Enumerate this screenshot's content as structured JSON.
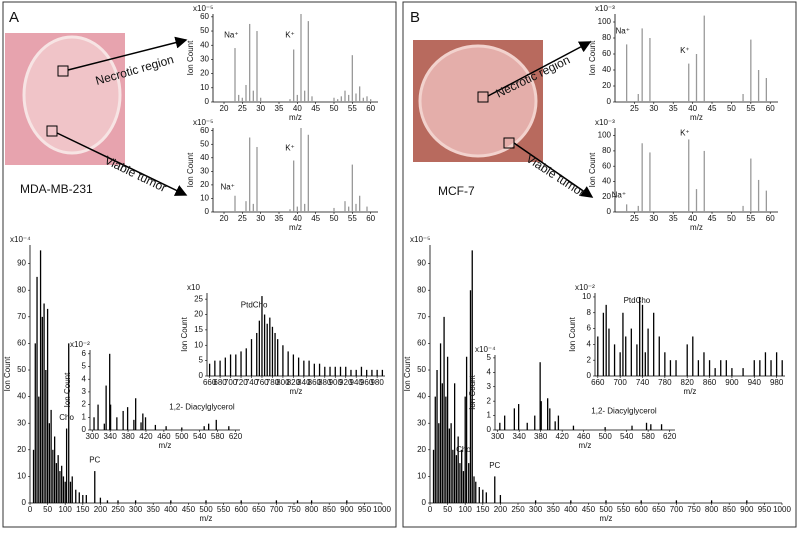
{
  "panels": [
    {
      "label": "A",
      "cell_line": "MDA-MB-231",
      "regions": [
        "Necrotic region",
        "Viable tumor"
      ]
    },
    {
      "label": "B",
      "cell_line": "MCF-7",
      "regions": [
        "Necrotic region",
        "Viable tumor"
      ]
    }
  ],
  "chart_data": [
    {
      "type": "bar",
      "exponent_label": "x10⁻⁵",
      "ylabel": "Ion Count",
      "xlabel": "m/z",
      "color": "#999999",
      "x": [
        23,
        24,
        25,
        26,
        27,
        28,
        29,
        30,
        38,
        39,
        40,
        41,
        42,
        43,
        44,
        50,
        51,
        52,
        53,
        54,
        55,
        56,
        57,
        58,
        59,
        60
      ],
      "values": [
        38,
        5,
        3,
        12,
        55,
        8,
        50,
        3,
        2,
        37,
        5,
        62,
        8,
        57,
        4,
        3,
        2,
        4,
        8,
        5,
        33,
        6,
        11,
        3,
        4,
        2
      ],
      "xlim": [
        17,
        62
      ],
      "xticks": [
        20,
        25,
        30,
        35,
        40,
        45,
        50,
        55,
        60
      ],
      "ylim": [
        0,
        62
      ],
      "yticks": [
        0,
        10,
        20,
        30,
        40,
        50,
        60
      ],
      "annotations": [
        {
          "text": "Na⁺",
          "x": 22,
          "y": 47
        },
        {
          "text": "K⁺",
          "x": 38,
          "y": 47
        }
      ]
    },
    {
      "type": "bar",
      "exponent_label": "x10⁻⁵",
      "ylabel": "Ion Count",
      "xlabel": "m/z",
      "color": "#999999",
      "x": [
        23,
        26,
        27,
        28,
        29,
        38,
        39,
        40,
        41,
        42,
        43,
        50,
        53,
        54,
        55,
        56,
        57,
        59
      ],
      "values": [
        12,
        8,
        55,
        6,
        48,
        2,
        38,
        4,
        62,
        6,
        57,
        3,
        8,
        4,
        35,
        6,
        12,
        4
      ],
      "xlim": [
        17,
        62
      ],
      "xticks": [
        20,
        25,
        30,
        35,
        40,
        45,
        50,
        55,
        60
      ],
      "ylim": [
        0,
        62
      ],
      "yticks": [
        0,
        10,
        20,
        30,
        40,
        50,
        60
      ],
      "annotations": [
        {
          "text": "Na⁺",
          "x": 21,
          "y": 18
        },
        {
          "text": "K⁺",
          "x": 38,
          "y": 47
        }
      ]
    },
    {
      "type": "bar",
      "exponent_label": "x10⁻⁴",
      "ylabel": "Ion Count",
      "xlabel": "m/z",
      "color": "#000000",
      "x": [
        10,
        15,
        20,
        25,
        30,
        35,
        40,
        45,
        50,
        55,
        60,
        65,
        70,
        75,
        80,
        85,
        90,
        95,
        100,
        104,
        110,
        115,
        120,
        130,
        140,
        150,
        160,
        184,
        200,
        220,
        250,
        300,
        400,
        500,
        600,
        700,
        760,
        800,
        900
      ],
      "values": [
        20,
        60,
        85,
        40,
        95,
        70,
        75,
        50,
        73,
        30,
        35,
        20,
        25,
        15,
        18,
        12,
        14,
        10,
        8,
        28,
        60,
        8,
        10,
        5,
        4,
        3,
        3,
        12,
        2,
        1,
        1,
        1,
        1,
        1,
        1,
        1,
        1,
        1,
        1
      ],
      "xlim": [
        0,
        1000
      ],
      "xticks": [
        0,
        50,
        100,
        150,
        200,
        250,
        300,
        350,
        400,
        450,
        500,
        550,
        600,
        650,
        700,
        750,
        800,
        850,
        900,
        950,
        1000
      ],
      "ylim": [
        0,
        97
      ],
      "yticks": [
        0,
        10,
        20,
        30,
        40,
        50,
        60,
        70,
        80,
        90
      ],
      "annotations": [
        {
          "text": "Cho",
          "x": 104,
          "y": 32
        },
        {
          "text": "PC",
          "x": 184,
          "y": 16
        }
      ]
    },
    {
      "type": "bar",
      "exponent_label": "x10⁻²",
      "ylabel": "Ion Count",
      "xlabel": "m/z",
      "color": "#000000",
      "x": [
        304,
        313,
        327,
        331,
        339,
        341,
        355,
        369,
        379,
        393,
        397,
        409,
        413,
        419,
        441,
        465,
        500,
        550,
        560,
        577,
        605
      ],
      "values": [
        1,
        2,
        0.5,
        3.5,
        6,
        2,
        1,
        1.5,
        1.8,
        0.8,
        2.5,
        0.6,
        1.3,
        1,
        0.4,
        0.3,
        0.2,
        0.3,
        0.5,
        0.8,
        0.3
      ],
      "xlim": [
        295,
        630
      ],
      "xticks": [
        300,
        340,
        380,
        420,
        460,
        500,
        540,
        580,
        620
      ],
      "ylim": [
        0,
        6.3
      ],
      "yticks": [
        0,
        1,
        2,
        3,
        4,
        5,
        6
      ],
      "annotations": [
        {
          "text": "1,2- Diacylglycerol",
          "x": 545,
          "y": 1.8
        }
      ]
    },
    {
      "type": "bar",
      "exponent_label": "x10",
      "ylabel": "Ion Count",
      "xlabel": "m/z",
      "color": "#000000",
      "x": [
        660,
        670,
        680,
        690,
        700,
        710,
        720,
        730,
        740,
        750,
        755,
        760,
        765,
        770,
        775,
        780,
        785,
        790,
        800,
        810,
        820,
        830,
        840,
        850,
        860,
        870,
        880,
        890,
        900,
        910,
        920,
        930,
        940,
        950,
        960,
        970,
        980,
        990
      ],
      "values": [
        4,
        5,
        5,
        6,
        7,
        7,
        8,
        9,
        12,
        14,
        18,
        26,
        20,
        17,
        19,
        16,
        14,
        12,
        10,
        8,
        7,
        6,
        5,
        5,
        4,
        4,
        3,
        3,
        3,
        3,
        3,
        2,
        2,
        3,
        2,
        2,
        2,
        2
      ],
      "xlim": [
        655,
        995
      ],
      "xticks": [
        660,
        680,
        700,
        720,
        740,
        760,
        780,
        800,
        820,
        840,
        860,
        880,
        900,
        920,
        940,
        960,
        980
      ],
      "ylim": [
        0,
        27
      ],
      "yticks": [
        0,
        5,
        10,
        15,
        20,
        25
      ],
      "annotations": [
        {
          "text": "PtdCho",
          "x": 745,
          "y": 23
        }
      ]
    },
    {
      "type": "bar",
      "exponent_label": "x10⁻³",
      "ylabel": "Ion Count",
      "xlabel": "m/z",
      "color": "#999999",
      "x": [
        23,
        26,
        27,
        29,
        39,
        41,
        43,
        53,
        55,
        57,
        59
      ],
      "values": [
        72,
        10,
        92,
        80,
        48,
        60,
        108,
        10,
        78,
        40,
        30
      ],
      "xlim": [
        20,
        62
      ],
      "xticks": [
        25,
        30,
        35,
        40,
        45,
        50,
        55,
        60
      ],
      "ylim": [
        0,
        110
      ],
      "yticks": [
        0,
        20,
        40,
        60,
        80,
        100
      ],
      "annotations": [
        {
          "text": "Na⁺",
          "x": 22,
          "y": 88
        },
        {
          "text": "K⁺",
          "x": 38,
          "y": 64
        }
      ]
    },
    {
      "type": "bar",
      "exponent_label": "x10⁻³",
      "ylabel": "Ion Count",
      "xlabel": "m/z",
      "color": "#999999",
      "x": [
        23,
        26,
        27,
        29,
        39,
        41,
        43,
        53,
        55,
        57,
        59
      ],
      "values": [
        10,
        8,
        90,
        78,
        95,
        30,
        80,
        8,
        70,
        42,
        28
      ],
      "xlim": [
        20,
        62
      ],
      "xticks": [
        25,
        30,
        35,
        40,
        45,
        50,
        55,
        60
      ],
      "ylim": [
        0,
        110
      ],
      "yticks": [
        0,
        20,
        40,
        60,
        80,
        100
      ],
      "annotations": [
        {
          "text": "Na⁺",
          "x": 21,
          "y": 22
        },
        {
          "text": "K⁺",
          "x": 38,
          "y": 103
        }
      ]
    },
    {
      "type": "bar",
      "exponent_label": "x10⁻⁵",
      "ylabel": "Ion Count",
      "xlabel": "m/z",
      "color": "#000000",
      "x": [
        10,
        15,
        20,
        25,
        30,
        35,
        40,
        45,
        50,
        55,
        60,
        65,
        70,
        75,
        80,
        85,
        90,
        95,
        100,
        104,
        110,
        115,
        120,
        125,
        130,
        140,
        150,
        160,
        184,
        200,
        300,
        400,
        500,
        600,
        700,
        800,
        900
      ],
      "values": [
        20,
        40,
        50,
        30,
        60,
        45,
        70,
        40,
        55,
        28,
        30,
        20,
        45,
        18,
        25,
        15,
        20,
        12,
        40,
        55,
        15,
        80,
        95,
        10,
        8,
        6,
        5,
        4,
        10,
        3,
        1,
        1,
        1,
        1,
        1,
        1,
        1
      ],
      "xlim": [
        0,
        1000
      ],
      "xticks": [
        0,
        50,
        100,
        150,
        200,
        250,
        300,
        350,
        400,
        450,
        500,
        550,
        600,
        650,
        700,
        750,
        800,
        850,
        900,
        950,
        1000
      ],
      "ylim": [
        0,
        97
      ],
      "yticks": [
        0,
        10,
        20,
        30,
        40,
        50,
        60,
        70,
        80,
        90
      ],
      "annotations": [
        {
          "text": "Cho",
          "x": 95,
          "y": 20
        },
        {
          "text": "PC",
          "x": 184,
          "y": 14
        }
      ]
    },
    {
      "type": "bar",
      "exponent_label": "x10⁻⁴",
      "ylabel": "Ion Count",
      "xlabel": "m/z",
      "color": "#000000",
      "x": [
        304,
        313,
        331,
        339,
        355,
        369,
        379,
        381,
        393,
        397,
        407,
        413,
        441,
        500,
        550,
        577,
        585,
        605
      ],
      "values": [
        0.5,
        1,
        1.5,
        1.8,
        0.5,
        1,
        4.7,
        2,
        2.2,
        1.5,
        0.6,
        1,
        0.3,
        0.2,
        0.3,
        0.5,
        0.4,
        0.4
      ],
      "xlim": [
        295,
        630
      ],
      "xticks": [
        300,
        340,
        380,
        420,
        460,
        500,
        540,
        580,
        620
      ],
      "ylim": [
        0,
        5.2
      ],
      "yticks": [
        0,
        1,
        2,
        3,
        4,
        5
      ],
      "annotations": [
        {
          "text": "1,2- Diacylglycerol",
          "x": 535,
          "y": 1.3
        }
      ]
    },
    {
      "type": "bar",
      "exponent_label": "x10⁻²",
      "ylabel": "Ion Count",
      "xlabel": "m/z",
      "color": "#000000",
      "x": [
        660,
        670,
        675,
        680,
        690,
        700,
        705,
        710,
        720,
        730,
        735,
        740,
        745,
        750,
        760,
        770,
        780,
        790,
        800,
        820,
        830,
        840,
        850,
        860,
        870,
        880,
        890,
        900,
        920,
        940,
        950,
        960,
        970,
        980,
        990
      ],
      "values": [
        5,
        8,
        9,
        6,
        4,
        3,
        8,
        5,
        6,
        4,
        10,
        9,
        3,
        6,
        8,
        5,
        3,
        2,
        2,
        4,
        5,
        2,
        3,
        2,
        1,
        2,
        2,
        1,
        1,
        2,
        2,
        3,
        2,
        3,
        2
      ],
      "xlim": [
        655,
        995
      ],
      "xticks": [
        660,
        700,
        740,
        780,
        820,
        860,
        900,
        940,
        980
      ],
      "ylim": [
        0,
        10.5
      ],
      "yticks": [
        0,
        2,
        4,
        6,
        8,
        10
      ],
      "annotations": [
        {
          "text": "PtdCho",
          "x": 730,
          "y": 9.5
        }
      ]
    }
  ]
}
